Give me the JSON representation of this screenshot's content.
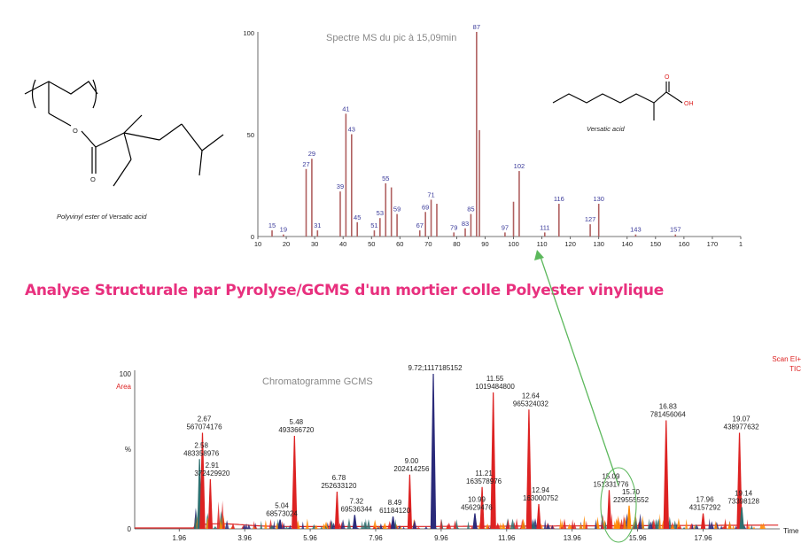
{
  "page_title": "Analyse Structurale par Pyrolyse/GCMS d'un mortier colle Polyester vinylique",
  "caption_left": "Polyvinyl ester of Versatic acid",
  "caption_right": "Versatic acid",
  "structure_right_oh": "OH",
  "structure_right_o": "O",
  "structure_left_o1": "O",
  "structure_left_o2": "O",
  "colors": {
    "title": "#e8307e",
    "ms_bars": "#b06060",
    "ms_labels": "#3a3a9a",
    "arrow": "#5cb85c",
    "tic_red": "#dd2222",
    "tic_blue": "#2a2a7a",
    "tic_teal": "#2f6f6f",
    "tic_orange": "#ff8800"
  },
  "chart_data": [
    {
      "type": "bar",
      "title": "Spectre MS du pic à 15,09min",
      "xlim": [
        10,
        180
      ],
      "ylim": [
        0,
        100
      ],
      "x_ticks": [
        "10",
        "20",
        "30",
        "40",
        "50",
        "60",
        "70",
        "80",
        "90",
        "100",
        "110",
        "120",
        "130",
        "140",
        "150",
        "160",
        "170",
        "1"
      ],
      "y_ticks": [
        "0",
        "50",
        "100"
      ],
      "series": [
        {
          "x": [
            15,
            19,
            27,
            29,
            31,
            39,
            41,
            43,
            45,
            51,
            53,
            55,
            57,
            59,
            67,
            69,
            71,
            73,
            79,
            83,
            85,
            87,
            88,
            97,
            100,
            102,
            111,
            116,
            127,
            130,
            143,
            157
          ],
          "values": [
            3,
            1,
            33,
            38,
            3,
            22,
            60,
            50,
            7,
            3,
            9,
            26,
            24,
            11,
            3,
            12,
            18,
            16,
            2,
            4,
            11,
            100,
            52,
            2,
            17,
            32,
            2,
            16,
            6,
            16,
            1,
            1
          ]
        }
      ],
      "peak_labels": [
        {
          "x": 15,
          "label": "15"
        },
        {
          "x": 19,
          "label": "19"
        },
        {
          "x": 27,
          "label": "27"
        },
        {
          "x": 29,
          "label": "29"
        },
        {
          "x": 31,
          "label": "31"
        },
        {
          "x": 39,
          "label": "39"
        },
        {
          "x": 41,
          "label": "41"
        },
        {
          "x": 43,
          "label": "43"
        },
        {
          "x": 45,
          "label": "45"
        },
        {
          "x": 51,
          "label": "51"
        },
        {
          "x": 53,
          "label": "53"
        },
        {
          "x": 55,
          "label": "55"
        },
        {
          "x": 59,
          "label": "59"
        },
        {
          "x": 67,
          "label": "67"
        },
        {
          "x": 69,
          "label": "69"
        },
        {
          "x": 71,
          "label": "71"
        },
        {
          "x": 79,
          "label": "79"
        },
        {
          "x": 83,
          "label": "83"
        },
        {
          "x": 85,
          "label": "85"
        },
        {
          "x": 87,
          "label": "87"
        },
        {
          "x": 97,
          "label": "97"
        },
        {
          "x": 102,
          "label": "102"
        },
        {
          "x": 111,
          "label": "111"
        },
        {
          "x": 116,
          "label": "116"
        },
        {
          "x": 127,
          "label": "127"
        },
        {
          "x": 130,
          "label": "130"
        },
        {
          "x": 143,
          "label": "143"
        },
        {
          "x": 157,
          "label": "157"
        }
      ]
    },
    {
      "type": "line",
      "title": "Chromatogramme GCMS",
      "xlabel": "Time",
      "ylabel": "%",
      "y_top_label": "100",
      "y_zero_label": "0",
      "area_label": "Area",
      "scan_label": "Scan EI+",
      "tic_label": "TIC",
      "xlim": [
        0.6,
        20.3
      ],
      "ylim": [
        0,
        100
      ],
      "x_ticks": [
        "1.96",
        "3.96",
        "5.96",
        "7.96",
        "9.96",
        "11.96",
        "13.96",
        "15.96",
        "17.96"
      ],
      "peaks": [
        {
          "rt": 2.58,
          "height": 45,
          "color": "teal",
          "label_rt": "2.58",
          "label_area": "483358976"
        },
        {
          "rt": 2.67,
          "height": 62,
          "color": "red",
          "label_rt": "2.67",
          "label_area": "567074176"
        },
        {
          "rt": 2.91,
          "height": 32,
          "color": "red",
          "label_rt": "2.91",
          "label_area": "372429920"
        },
        {
          "rt": 5.04,
          "height": 6,
          "color": "blue",
          "label_rt": "5.04",
          "label_area": "68573024"
        },
        {
          "rt": 5.48,
          "height": 60,
          "color": "red",
          "label_rt": "5.48",
          "label_area": "493366720"
        },
        {
          "rt": 6.78,
          "height": 24,
          "color": "red",
          "label_rt": "6.78",
          "label_area": "252633120"
        },
        {
          "rt": 7.32,
          "height": 9,
          "color": "blue",
          "label_rt": "7.32",
          "label_area": "69536344"
        },
        {
          "rt": 8.49,
          "height": 8,
          "color": "blue",
          "label_rt": "8.49",
          "label_area": "61184120"
        },
        {
          "rt": 9.0,
          "height": 35,
          "color": "red",
          "label_rt": "9.00",
          "label_area": "202414256"
        },
        {
          "rt": 9.72,
          "height": 100,
          "color": "blue",
          "label_rt": "9.72;1117185152",
          "label_area": ""
        },
        {
          "rt": 10.99,
          "height": 10,
          "color": "blue",
          "label_rt": "10.99",
          "label_area": "45629476"
        },
        {
          "rt": 11.21,
          "height": 27,
          "color": "red",
          "label_rt": "11.21",
          "label_area": "163578976"
        },
        {
          "rt": 11.55,
          "height": 88,
          "color": "red",
          "label_rt": "11.55",
          "label_area": "1019484800"
        },
        {
          "rt": 12.64,
          "height": 77,
          "color": "red",
          "label_rt": "12.64",
          "label_area": "965324032"
        },
        {
          "rt": 12.94,
          "height": 16,
          "color": "red",
          "label_rt": "12.94",
          "label_area": "163000752"
        },
        {
          "rt": 15.09,
          "height": 25,
          "color": "red",
          "label_rt": "15.09",
          "label_area": "151331776"
        },
        {
          "rt": 15.7,
          "height": 15,
          "color": "orange",
          "label_rt": "15.70",
          "label_area": "229555552"
        },
        {
          "rt": 16.83,
          "height": 70,
          "color": "red",
          "label_rt": "16.83",
          "label_area": "781456064"
        },
        {
          "rt": 17.96,
          "height": 10,
          "color": "red",
          "label_rt": "17.96",
          "label_area": "43157292"
        },
        {
          "rt": 19.07,
          "height": 62,
          "color": "red",
          "label_rt": "19.07",
          "label_area": "438977632"
        },
        {
          "rt": 19.14,
          "height": 14,
          "color": "teal",
          "label_rt": "19.14",
          "label_area": "73398128"
        }
      ]
    }
  ]
}
